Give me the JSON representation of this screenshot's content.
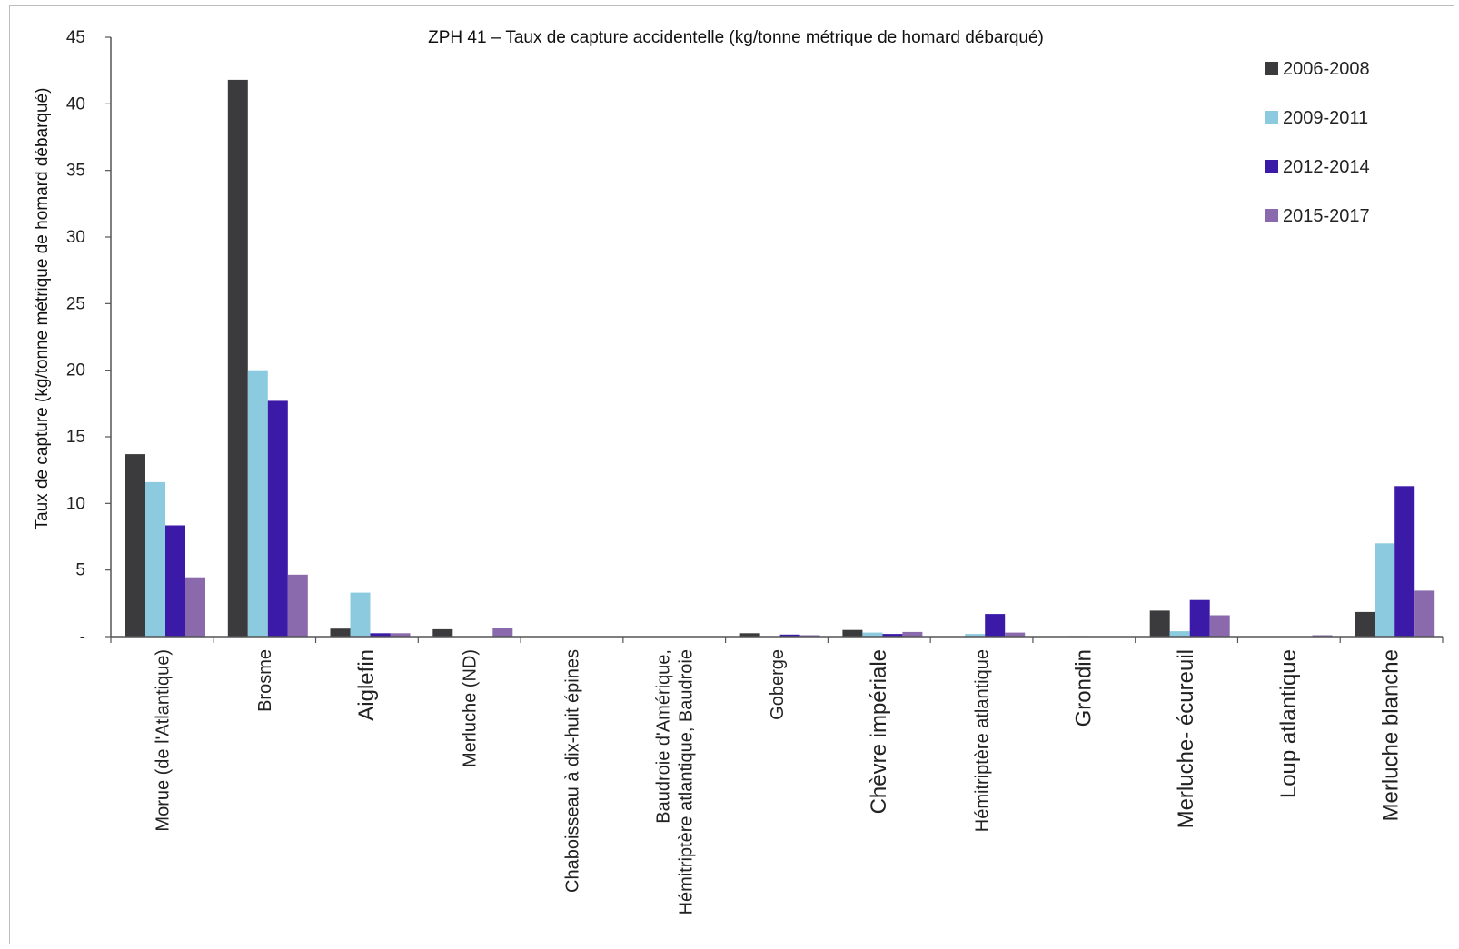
{
  "chart_data": {
    "type": "bar",
    "title": "ZPH 41 – Taux de capture accidentelle (kg/tonne métrique de homard débarqué)",
    "xlabel": "",
    "ylabel": "Taux de capture (kg/tonne métrique de homard débarqué)",
    "ylim": [
      0,
      45
    ],
    "yticks": [
      "-",
      "5",
      "10",
      "15",
      "20",
      "25",
      "30",
      "35",
      "40",
      "45"
    ],
    "grid": false,
    "legend_position": "top-right",
    "categories": [
      "Morue (de l'Atlantique)",
      "Brosme",
      "Aiglefin",
      "Merluche (ND)",
      "Chaboisseau à dix-huit épines",
      "Baudroie d'Amérique, Hémitriptère atlantique, Baudroie",
      "Goberge",
      "Chèvre impériale",
      "Hémitriptère atlantique",
      "Grondin",
      "Merluche- écureuil",
      "Loup atlantique",
      "Merluche blanche"
    ],
    "series": [
      {
        "name": "2006-2008",
        "color": "#3b3b3d",
        "values": [
          13.7,
          41.8,
          0.6,
          0.55,
          0,
          0,
          0.25,
          0.5,
          0,
          0,
          1.95,
          0,
          1.85
        ]
      },
      {
        "name": "2009-2011",
        "color": "#8ccbdf",
        "values": [
          11.6,
          20.0,
          3.3,
          0,
          0,
          0,
          0,
          0.3,
          0.2,
          0.05,
          0.4,
          0,
          7.0
        ]
      },
      {
        "name": "2012-2014",
        "color": "#3b1aa8",
        "values": [
          8.35,
          17.7,
          0.25,
          0,
          0,
          0,
          0.15,
          0.2,
          1.7,
          0,
          2.75,
          0,
          11.3
        ]
      },
      {
        "name": "2015-2017",
        "color": "#8a6aac",
        "values": [
          4.45,
          4.65,
          0.25,
          0.65,
          0,
          0,
          0.1,
          0.35,
          0.3,
          0,
          1.6,
          0.1,
          3.45
        ]
      }
    ]
  }
}
